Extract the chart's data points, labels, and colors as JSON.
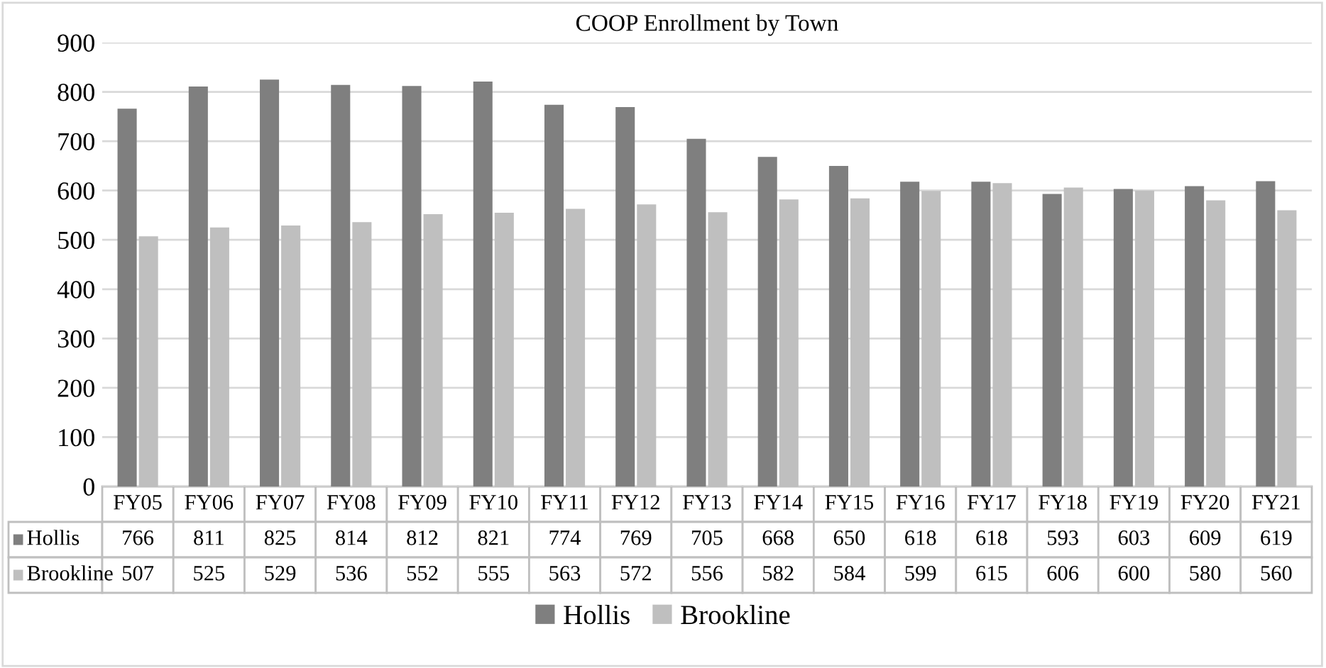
{
  "chart_data": {
    "type": "bar",
    "title": "COOP Enrollment by Town",
    "categories": [
      "FY05",
      "FY06",
      "FY07",
      "FY08",
      "FY09",
      "FY10",
      "FY11",
      "FY12",
      "FY13",
      "FY14",
      "FY15",
      "FY16",
      "FY17",
      "FY18",
      "FY19",
      "FY20",
      "FY21"
    ],
    "series": [
      {
        "name": "Hollis",
        "color": "#7f7f7f",
        "values": [
          766,
          811,
          825,
          814,
          812,
          821,
          774,
          769,
          705,
          668,
          650,
          618,
          618,
          593,
          603,
          609,
          619
        ]
      },
      {
        "name": "Brookline",
        "color": "#bfbfbf",
        "values": [
          507,
          525,
          529,
          536,
          552,
          555,
          563,
          572,
          556,
          582,
          584,
          599,
          615,
          606,
          600,
          580,
          560
        ]
      }
    ],
    "ylim": [
      0,
      900
    ],
    "yticks": [
      0,
      100,
      200,
      300,
      400,
      500,
      600,
      700,
      800,
      900
    ],
    "grid": "y",
    "legend": "bottom",
    "data_labels": true
  }
}
